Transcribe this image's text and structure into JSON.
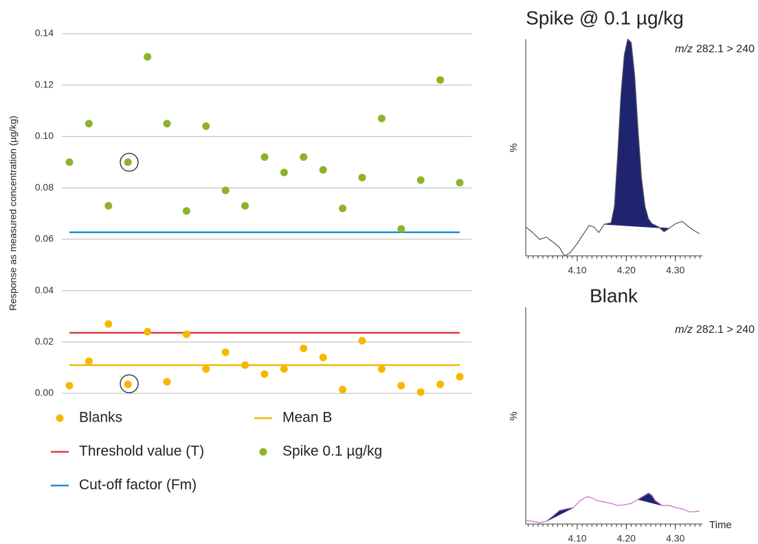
{
  "chart_data": [
    {
      "type": "scatter",
      "y_label": "Response as measured concentration (µg/kg)",
      "categories": [
        null,
        null,
        null,
        null,
        null,
        null,
        null,
        null,
        null,
        null,
        null,
        null,
        null,
        null,
        null,
        null,
        null,
        null,
        null,
        null,
        null
      ],
      "series": [
        {
          "name": "Blanks",
          "color": "#f5b800",
          "values": [
            0.003,
            0.0125,
            0.027,
            0.0035,
            0.024,
            0.0045,
            0.023,
            0.0095,
            0.016,
            0.011,
            0.0075,
            0.0095,
            0.0175,
            0.014,
            0.0015,
            0.0205,
            0.0095,
            0.003,
            0.0005,
            0.0035,
            0.0065
          ]
        },
        {
          "name": "Spike 0.1 µg/kg",
          "color": "#8db32b",
          "values": [
            0.09,
            0.105,
            0.073,
            0.09,
            0.131,
            0.105,
            0.071,
            0.104,
            0.079,
            0.073,
            0.092,
            0.086,
            0.092,
            0.087,
            0.072,
            0.084,
            0.107,
            0.064,
            0.083,
            0.122,
            0.082
          ]
        }
      ],
      "hlines": [
        {
          "name": "Mean B",
          "color": "#f5b800",
          "value": 0.011
        },
        {
          "name": "Threshold value (T)",
          "color": "#e03a3a",
          "value": 0.0236
        },
        {
          "name": "Cut-off factor (Fm)",
          "color": "#1a8fd6",
          "value": 0.0627
        }
      ],
      "ylim": [
        0,
        0.14
      ],
      "yticks": [
        {
          "value": 0,
          "label": "0.00"
        },
        0.02,
        0.04,
        0.06,
        0.08,
        {
          "value": 0.1,
          "label": "0.10"
        },
        0.12,
        0.14
      ],
      "grid": true
    },
    {
      "type": "line",
      "title": "Spike @ 0.1 µg/kg",
      "annotation": {
        "italic": "m/z",
        "text": "282.1 > 240"
      },
      "y_label": "%",
      "x": [
        3.995,
        4.009,
        4.023,
        4.037,
        4.051,
        4.064,
        4.074,
        4.085,
        4.099,
        4.113,
        4.124,
        4.134,
        4.144,
        4.155,
        4.169,
        4.176,
        4.183,
        4.189,
        4.196,
        4.203,
        4.21,
        4.217,
        4.224,
        4.231,
        4.238,
        4.245,
        4.252,
        4.266,
        4.277,
        4.287,
        4.301,
        4.314,
        4.328,
        4.338,
        4.349
      ],
      "series": [
        {
          "color": "#555555",
          "values": [
            13.3,
            10.8,
            7.6,
            8.6,
            6.3,
            3.8,
            0,
            1.3,
            5.4,
            10.2,
            14.0,
            13.3,
            10.8,
            14.6,
            15.2,
            22.9,
            48.3,
            73.7,
            92.7,
            100,
            98.4,
            83.2,
            57.8,
            35.6,
            22.9,
            17.1,
            14.9,
            13.3,
            11.1,
            12.7,
            14.9,
            15.9,
            13.3,
            11.7,
            10.2
          ]
        }
      ],
      "fill_ranges": [
        [
          4.155,
          4.287
        ]
      ],
      "fill_color": "#1f2470",
      "xlim": [
        3.995,
        4.355
      ],
      "xticks": [
        {
          "value": 4.1,
          "label": "4.10"
        },
        {
          "value": 4.2,
          "label": "4.20"
        },
        {
          "value": 4.3,
          "label": "4.30"
        }
      ],
      "ylim": [
        0,
        100
      ]
    },
    {
      "type": "line",
      "title": "Blank",
      "annotation": {
        "italic": "m/z",
        "text": "282.1 > 240"
      },
      "y_label": "%",
      "x_label": "Time",
      "x": [
        3.995,
        4.009,
        4.023,
        4.037,
        4.051,
        4.064,
        4.078,
        4.092,
        4.106,
        4.12,
        4.13,
        4.141,
        4.155,
        4.169,
        4.183,
        4.196,
        4.21,
        4.224,
        4.238,
        4.245,
        4.252,
        4.259,
        4.273,
        4.287,
        4.301,
        4.314,
        4.328,
        4.338,
        4.349
      ],
      "series": [
        {
          "color": "#c36bc3",
          "values": [
            1.6,
            1.3,
            0.6,
            1.3,
            3.8,
            6.3,
            7.0,
            7.6,
            10.8,
            12.7,
            12.1,
            10.8,
            10.2,
            9.5,
            8.6,
            8.9,
            9.5,
            11.4,
            13.3,
            14.3,
            13.3,
            10.8,
            8.6,
            8.6,
            7.6,
            7.0,
            5.7,
            5.7,
            6.0
          ]
        }
      ],
      "fill_ranges": [
        [
          4.037,
          4.092
        ],
        [
          4.224,
          4.273
        ]
      ],
      "fill_color": "#1f2470",
      "xlim": [
        3.995,
        4.355
      ],
      "xticks": [
        {
          "value": 4.1,
          "label": "4.10"
        },
        {
          "value": 4.2,
          "label": "4.20"
        },
        {
          "value": 4.3,
          "label": "4.30"
        }
      ],
      "ylim": [
        0,
        100
      ]
    }
  ]
}
